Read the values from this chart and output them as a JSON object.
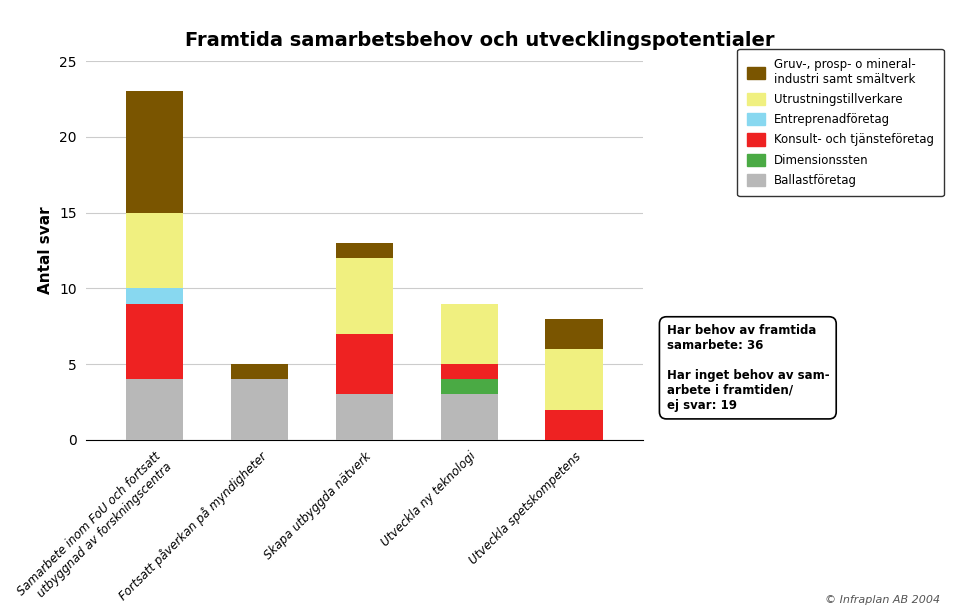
{
  "title": "Framtida samarbetsbehov och utvecklingspotentialer",
  "ylabel": "Antal svar",
  "ylim": [
    0,
    25
  ],
  "yticks": [
    0,
    5,
    10,
    15,
    20,
    25
  ],
  "categories": [
    "Samarbete inom FoU och fortsatt\nutbyggnad av forskningscentra",
    "Fortsatt påverkan på myndigheter",
    "Skapa utbyggda nätverk",
    "Utveckla ny teknologi",
    "Utveckla spetskompetens"
  ],
  "segments": [
    {
      "label": "Ballastföretag",
      "color": "#b8b8b8",
      "values": [
        4,
        4,
        3,
        3,
        0
      ]
    },
    {
      "label": "Dimensionssten",
      "color": "#4aaa44",
      "values": [
        0,
        0,
        0,
        1,
        0
      ]
    },
    {
      "label": "Konsult- och tjänsteföretag",
      "color": "#ee2222",
      "values": [
        5,
        0,
        4,
        1,
        2
      ]
    },
    {
      "label": "Entreprenadföretag",
      "color": "#88d8f0",
      "values": [
        1,
        0,
        0,
        0,
        0
      ]
    },
    {
      "label": "Utrustningstillverkare",
      "color": "#f0f080",
      "values": [
        5,
        0,
        5,
        4,
        4
      ]
    },
    {
      "label": "Gruv-, prosp- o mineral-\nindustri samt smältverk",
      "color": "#7a5500",
      "values": [
        8,
        1,
        1,
        0,
        2
      ]
    }
  ],
  "annotation_text": "Har behov av framtida\nsamarbete: 36\n\nHar inget behov av sam-\narbete i framtiden/\nej svar: 19",
  "copyright_text": "© Infraplan AB 2004",
  "background_color": "#ffffff",
  "bar_width": 0.55,
  "figsize": [
    9.59,
    6.11
  ],
  "dpi": 100
}
